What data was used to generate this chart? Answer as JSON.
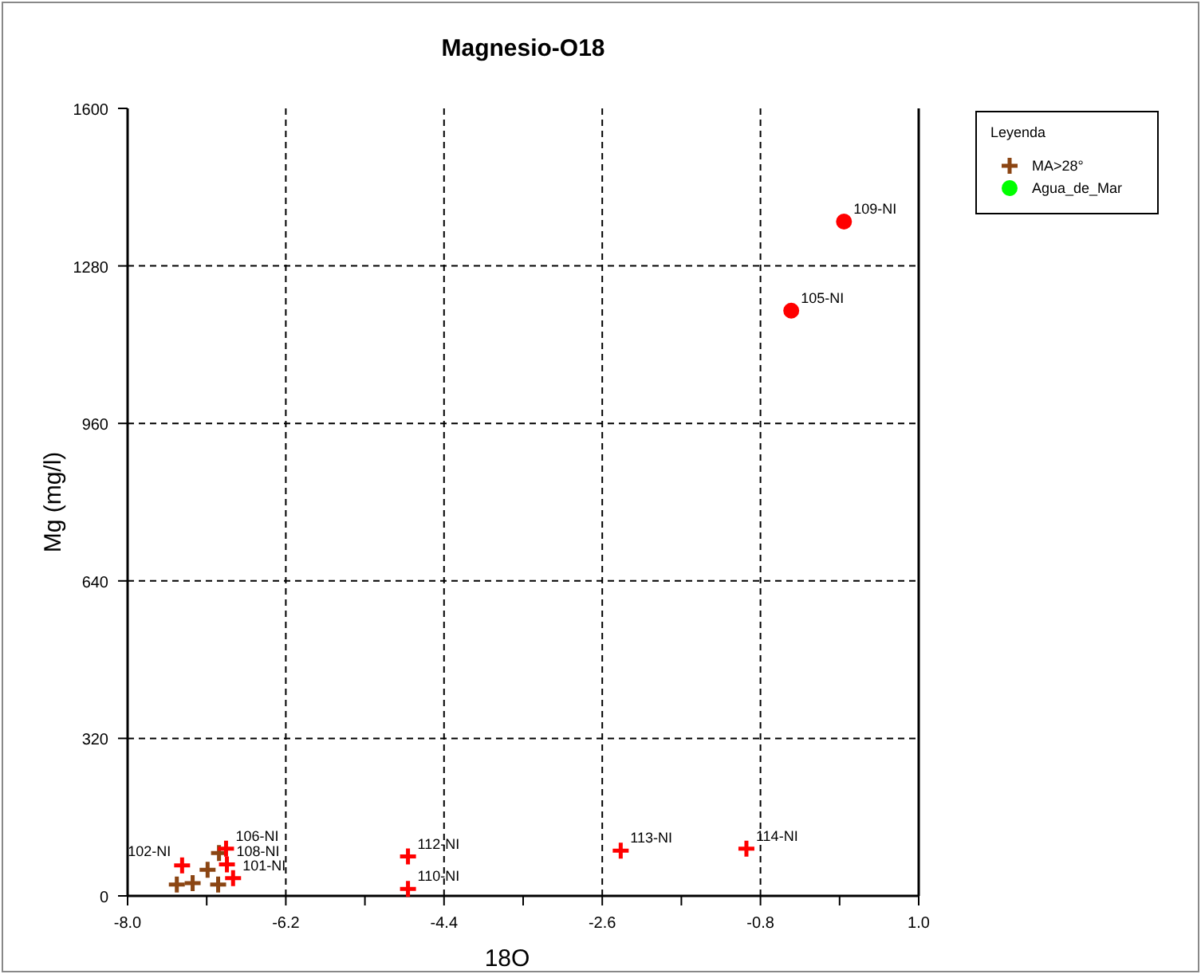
{
  "chart_data": {
    "type": "scatter",
    "title": "Magnesio-O18",
    "xlabel": "18O",
    "ylabel": "Mg (mg/l)",
    "legend_title": "Leyenda",
    "legend": "top right",
    "grid": true,
    "line_style": "dashed",
    "xlim": [
      -8,
      1
    ],
    "xticks": [
      {
        "value": -8,
        "label": "-8.0"
      },
      {
        "value": -7.1,
        "label": null
      },
      {
        "value": -6.2,
        "label": "-6.2"
      },
      {
        "value": -5.3,
        "label": null
      },
      {
        "value": -4.4,
        "label": "-4.4"
      },
      {
        "value": -3.5,
        "label": null
      },
      {
        "value": -2.6,
        "label": "-2.6"
      },
      {
        "value": -1.7,
        "label": null
      },
      {
        "value": -0.8,
        "label": "-0.8"
      },
      {
        "value": 0.1,
        "label": null
      },
      {
        "value": 1,
        "label": "1.0"
      }
    ],
    "ylim": [
      0,
      1600
    ],
    "yticks": [
      0,
      320,
      640,
      960,
      1280,
      1600
    ],
    "series": [
      {
        "name": "MA>28°",
        "color": "#8b4513",
        "marker": "cross",
        "x": [
          -7.44,
          -7.26,
          -7.09,
          -6.97,
          -6.96
        ],
        "values": [
          23,
          26,
          53,
          23,
          87
        ]
      },
      {
        "name": "Agua_de_Mar",
        "color": "#00ff00",
        "marker": "circle"
      },
      {
        "color": "#ff0000",
        "marker": "cross",
        "x": [
          -7.38,
          -6.88,
          -6.87,
          -6.8,
          -4.81,
          -4.81,
          -2.39,
          -0.96
        ],
        "values": [
          62,
          96,
          64,
          36,
          80,
          14,
          92,
          96
        ]
      },
      {
        "color": "#ff0000",
        "marker": "circle",
        "x": [
          0.15,
          -0.45
        ],
        "values": [
          1370,
          1189
        ]
      }
    ],
    "annotations": [
      {
        "text": "102-NI",
        "x": -7.38,
        "y": 62
      },
      {
        "text": "106-NI",
        "x": -6.88,
        "y": 96
      },
      {
        "text": "108-NI",
        "x": -6.87,
        "y": 64
      },
      {
        "text": "101-NI",
        "x": -6.8,
        "y": 36
      },
      {
        "text": "112-NI",
        "x": -4.81,
        "y": 80
      },
      {
        "text": "110-NI",
        "x": -4.81,
        "y": 14
      },
      {
        "text": "113-NI",
        "x": -2.39,
        "y": 92
      },
      {
        "text": "114-NI",
        "x": -0.96,
        "y": 96
      },
      {
        "text": "109-NI",
        "x": 0.15,
        "y": 1370
      },
      {
        "text": "105-NI",
        "x": -0.45,
        "y": 1189
      }
    ]
  }
}
